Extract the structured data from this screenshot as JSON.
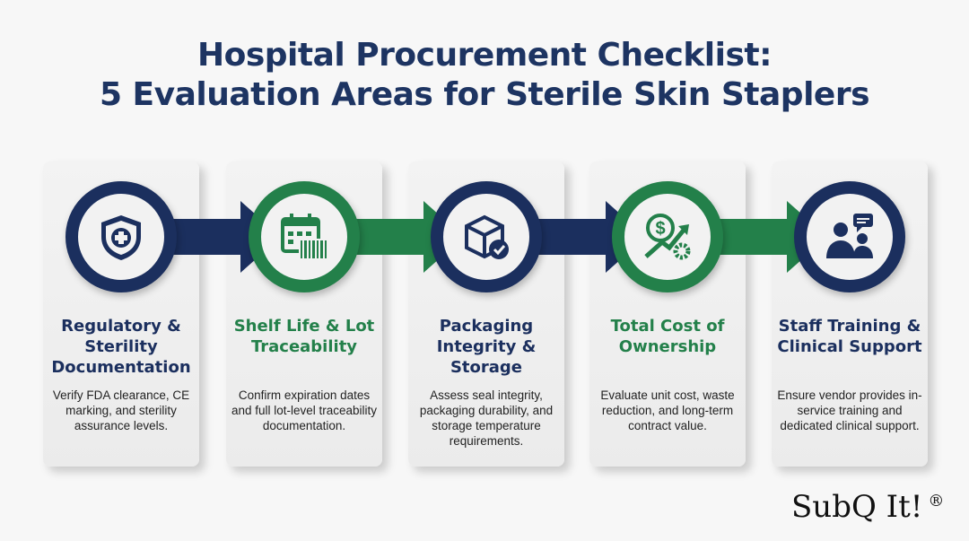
{
  "title": {
    "line1": "Hospital Procurement Checklist:",
    "line2": "5 Evaluation Areas for Sterile Skin Staplers"
  },
  "colors": {
    "navy": "#1b2f5e",
    "green": "#23804a"
  },
  "steps": [
    {
      "heading": "Regulatory & Sterility Documentation",
      "description": "Verify FDA clearance, CE marking, and sterility assurance levels.",
      "icon": "shield-cross-icon",
      "color": "navy"
    },
    {
      "heading": "Shelf Life & Lot Traceability",
      "description": "Confirm expiration dates and full lot-level traceability documentation.",
      "icon": "calendar-barcode-icon",
      "color": "green"
    },
    {
      "heading": "Packaging Integrity & Storage",
      "description": "Assess seal integrity, packaging durability, and storage temperature requirements.",
      "icon": "package-check-icon",
      "color": "navy"
    },
    {
      "heading": "Total Cost of Ownership",
      "description": "Evaluate unit cost, waste reduction, and long-term contract value.",
      "icon": "dollar-growth-gear-icon",
      "color": "green"
    },
    {
      "heading": "Staff Training & Clinical Support",
      "description": "Ensure vendor provides in-service training and dedicated clinical support.",
      "icon": "staff-support-icon",
      "color": "navy"
    }
  ],
  "logo": {
    "text": "SubQ It!",
    "mark": "®"
  }
}
